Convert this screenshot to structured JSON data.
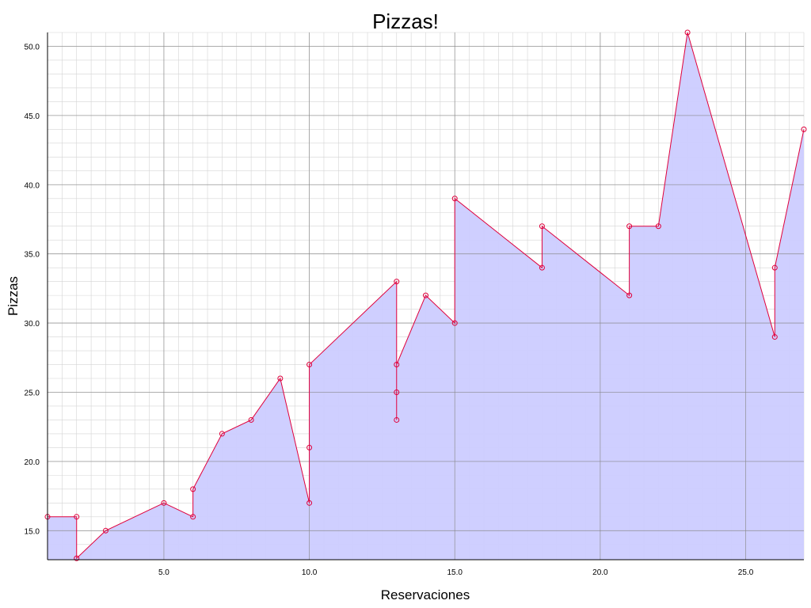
{
  "chart_data": {
    "type": "area",
    "title": "Pizzas!",
    "xlabel": "Reservaciones",
    "ylabel": "Pizzas",
    "xlim": [
      1,
      27
    ],
    "ylim": [
      12.9,
      51
    ],
    "x_ticks": [
      5,
      10,
      15,
      20,
      25
    ],
    "x_tick_labels": [
      "5.0",
      "10.0",
      "15.0",
      "20.0",
      "25.0"
    ],
    "y_ticks": [
      15,
      20,
      25,
      30,
      35,
      40,
      45,
      50
    ],
    "y_tick_labels": [
      "15.0",
      "20.0",
      "25.0",
      "30.0",
      "35.0",
      "40.0",
      "45.0",
      "50.0"
    ],
    "grid": true,
    "colors": {
      "line": "#e0003c",
      "fill": "#ccccff",
      "marker": "#e0003c",
      "major_grid": "#888888",
      "minor_grid": "#d4d4d4"
    },
    "series": [
      {
        "x": [
          1,
          2,
          2,
          3,
          5,
          6,
          6,
          7,
          8,
          9,
          10,
          10,
          10,
          13,
          13,
          13,
          13,
          14,
          15,
          15,
          18,
          18,
          21,
          21,
          22,
          23,
          26,
          26,
          27
        ],
        "y": [
          16,
          16,
          13,
          15,
          17,
          16,
          18,
          22,
          23,
          26,
          17,
          21,
          27,
          33,
          23,
          25,
          27,
          32,
          30,
          39,
          34,
          37,
          32,
          37,
          37,
          51,
          29,
          34,
          44
        ]
      }
    ]
  }
}
